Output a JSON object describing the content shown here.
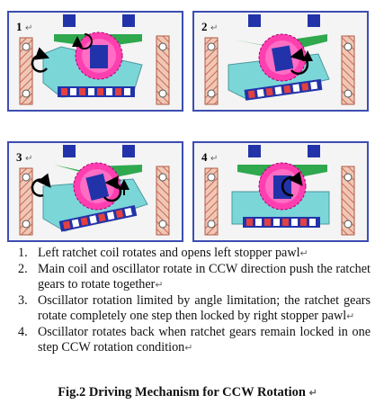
{
  "panels": [
    {
      "label": "1",
      "mark": "↵"
    },
    {
      "label": "2",
      "mark": "↵"
    },
    {
      "label": "3",
      "mark": "↵"
    },
    {
      "label": "4",
      "mark": "↵"
    }
  ],
  "steps": [
    {
      "num": "1.",
      "text": "Left ratchet coil rotates and opens left stopper pawl",
      "mark": "↵"
    },
    {
      "num": "2.",
      "text": "Main coil and oscillator rotate in CCW direction push the ratchet gears to rotate together",
      "mark": "↵"
    },
    {
      "num": "3.",
      "text": "Oscillator rotation limited by angle limitation; the ratchet gears rotate completely one step then locked by right stopper pawl",
      "mark": "↵"
    },
    {
      "num": "4.",
      "text": "Oscillator rotates back when ratchet gears remain locked in one step CCW rotation condition",
      "mark": "↵"
    }
  ],
  "caption": "Fig.2 Driving Mechanism for CCW Rotation",
  "caption_mark": "↵",
  "colors": {
    "frame": "#3d4db3",
    "gear": "#ff3fb0",
    "pawl": "#2fa84e",
    "coil": "#2233aa",
    "platform": "#6fd3d6",
    "rail": "#d98b73"
  }
}
